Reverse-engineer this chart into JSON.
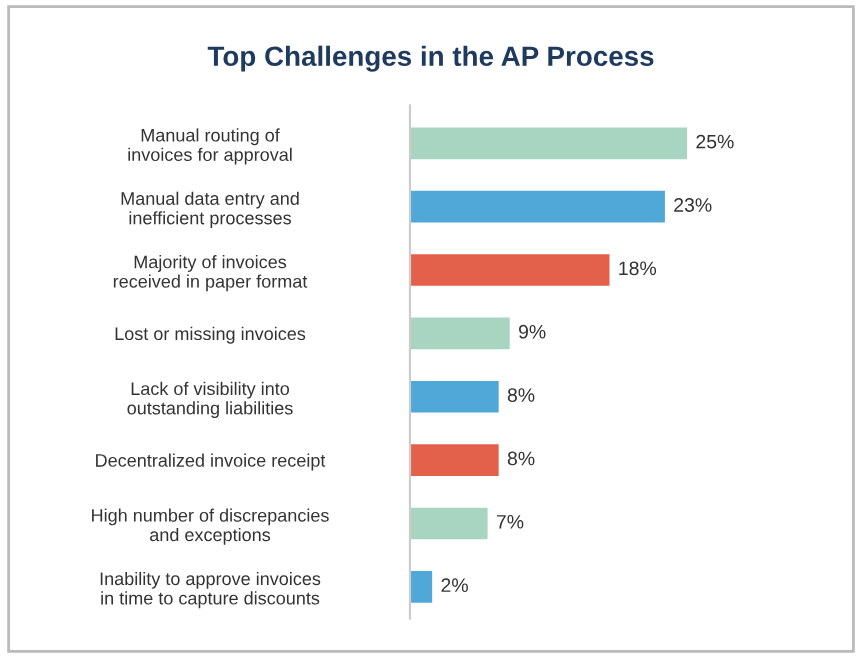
{
  "chart_data": {
    "type": "bar",
    "orientation": "horizontal",
    "title": "Top Challenges in the AP Process",
    "categories": [
      "Manual routing of\ninvoices for approval",
      "Manual data entry and\ninefficient processes",
      "Majority of invoices\nreceived in paper format",
      "Lost or missing invoices",
      "Lack of visibility into\noutstanding liabilities",
      "Decentralized invoice receipt",
      "High number of discrepancies\nand exceptions",
      "Inability to approve invoices\nin time to capture discounts"
    ],
    "values": [
      25,
      23,
      18,
      9,
      8,
      8,
      7,
      2
    ],
    "colors": [
      "#a8d5c2",
      "#4fa8d8",
      "#e3604a",
      "#a8d5c2",
      "#4fa8d8",
      "#e3604a",
      "#a8d5c2",
      "#4fa8d8"
    ],
    "value_labels": [
      "25%",
      "23%",
      "18%",
      "9%",
      "8%",
      "8%",
      "7%",
      "2%"
    ],
    "grid": false,
    "legend": false
  }
}
